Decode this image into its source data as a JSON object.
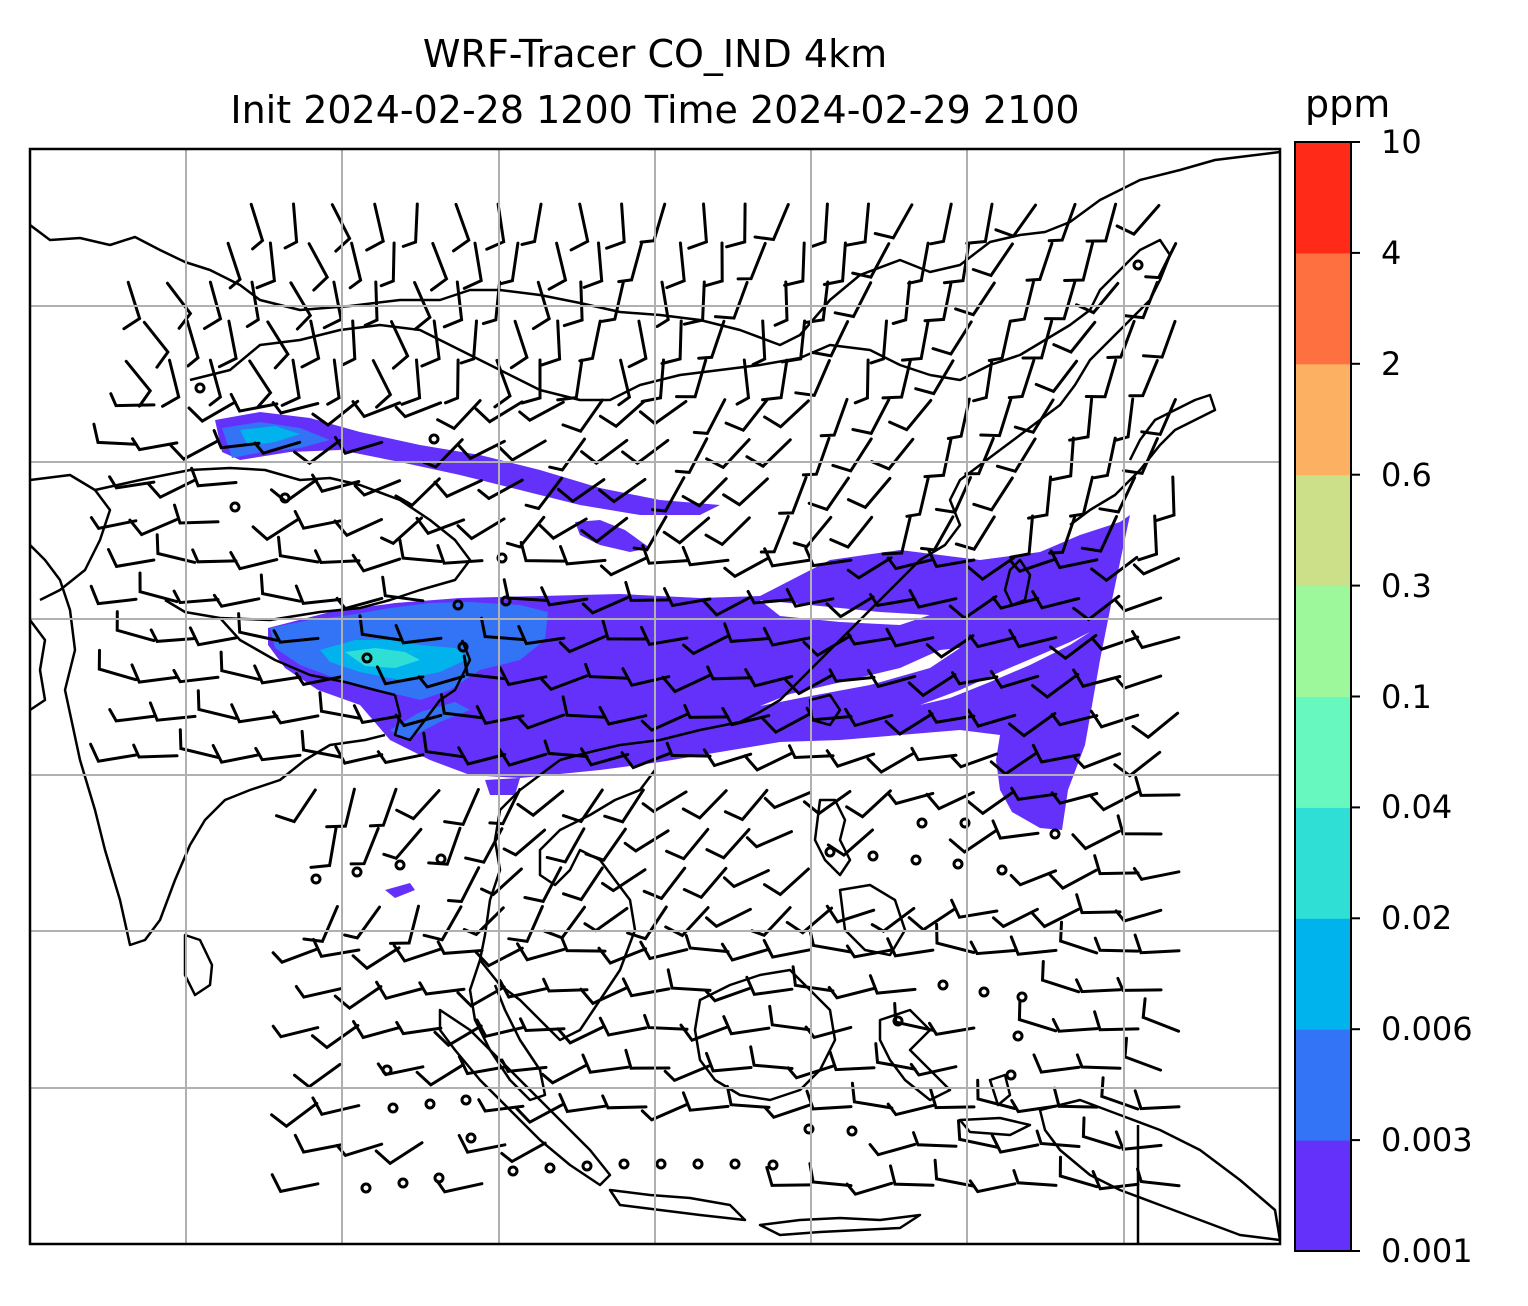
{
  "title_line1": "WRF-Tracer CO_IND 4km",
  "title_line2": "Init 2024-02-28 1200 Time 2024-02-29 2100",
  "colorbar": {
    "unit": "ppm",
    "levels": [
      "0.001",
      "0.003",
      "0.006",
      "0.02",
      "0.04",
      "0.1",
      "0.3",
      "0.6",
      "2",
      "4",
      "10"
    ],
    "colors": [
      "#6431fb",
      "#3373f5",
      "#00b3ed",
      "#2fdfd5",
      "#67f8c0",
      "#9cf89b",
      "#cbe089",
      "#fbb062",
      "#ff7040",
      "#ff2b18"
    ]
  },
  "map_style": {
    "grid_color": "#b0b0b0",
    "coast_color": "#000000",
    "background": "#ffffff"
  }
}
